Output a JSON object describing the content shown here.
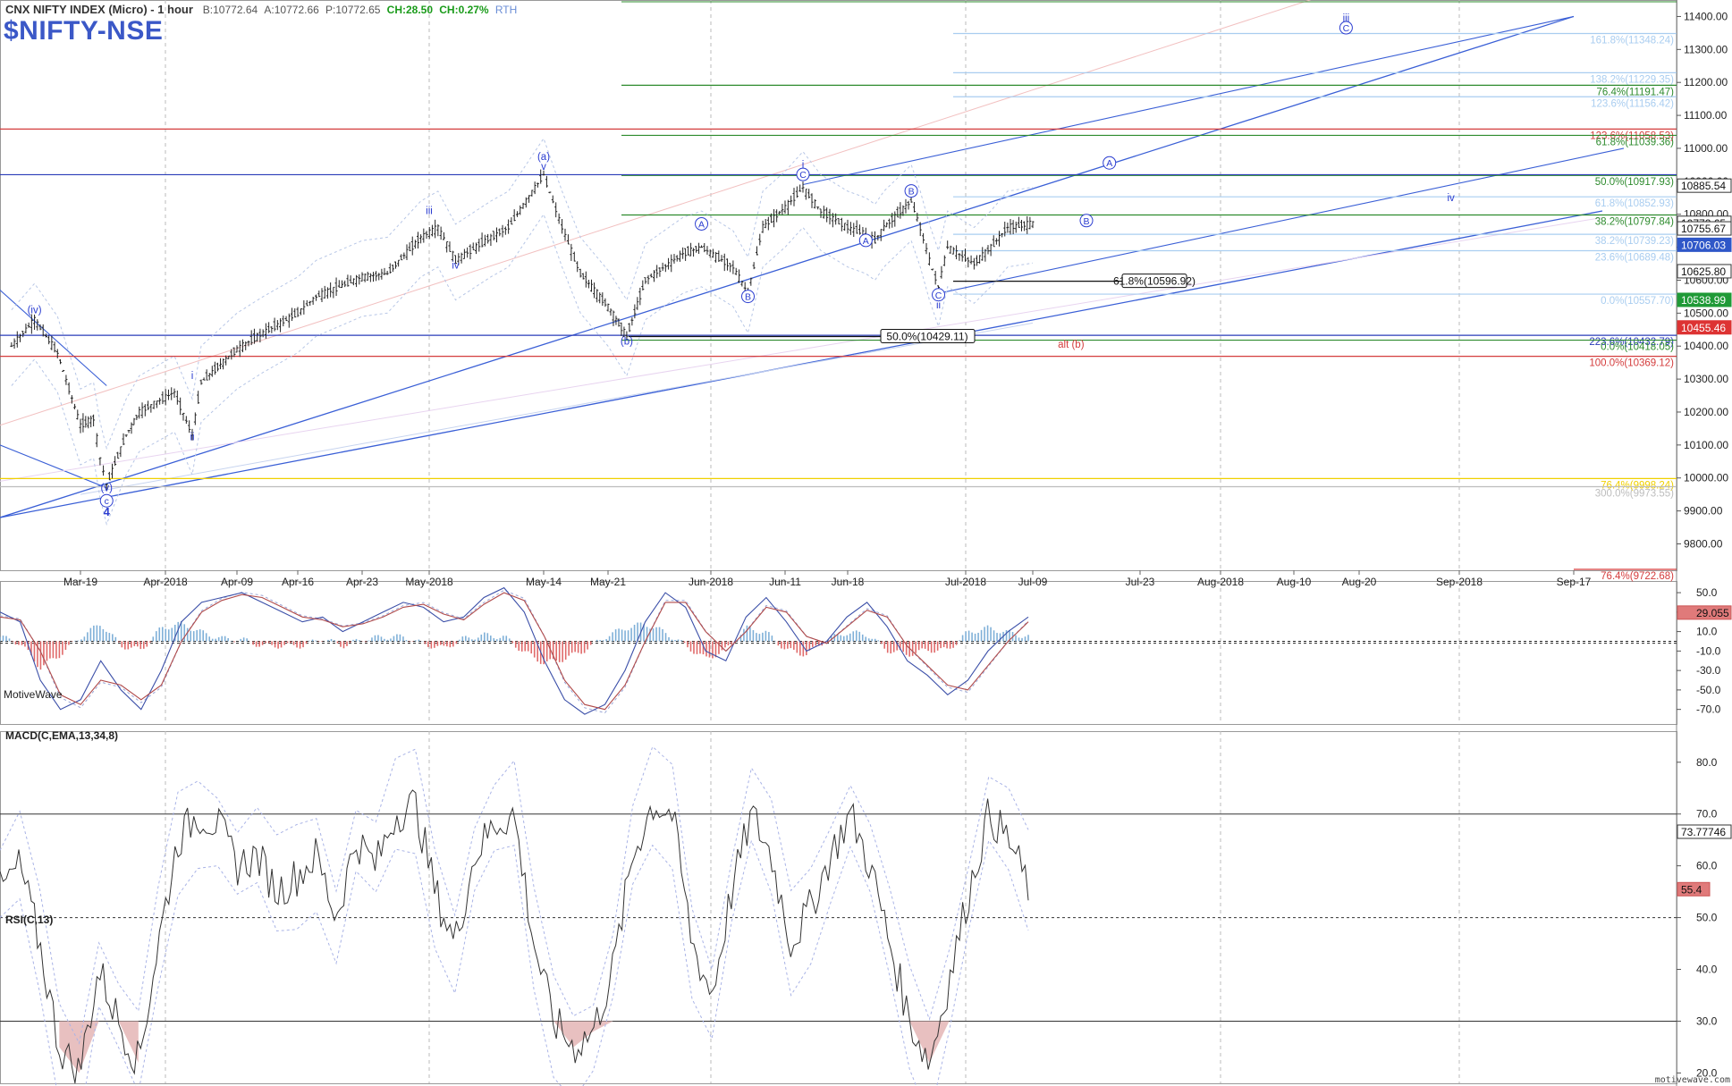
{
  "header": {
    "title": "CNX NIFTY INDEX (Micro) - 1 hour",
    "bid": "B:10772.64",
    "ask": "A:10772.66",
    "price": "P:10772.65",
    "change": "CH:28.50",
    "change_pct": "CH:0.27%",
    "session": "RTH"
  },
  "symbol": "$NIFTY-NSE",
  "watermark": "MotiveWave",
  "footer": "motivewave.com",
  "colors": {
    "green_fib": "#2e8b2e",
    "red_fib": "#d43c3c",
    "blue_line": "#3a5fd6",
    "light_blue_fib": "#a9cdf0",
    "yellow": "#f0d000",
    "grey": "#bdbdbd",
    "dark_blue_line": "#2a3cb8",
    "macd_pos": "#7fb0d8",
    "macd_neg": "#e06a6a"
  },
  "chart_data": [
    {
      "type": "candlestick",
      "title": "CNX NIFTY INDEX (Micro) - 1 hour",
      "x_labels": [
        "Mar-19",
        "Apr-2018",
        "Apr-09",
        "Apr-16",
        "Apr-23",
        "May-2018",
        "May-14",
        "May-21",
        "Jun-2018",
        "Jun-11",
        "Jun-18",
        "Jul-2018",
        "Jul-09",
        "Jul-23",
        "Aug-2018",
        "Aug-10",
        "Aug-20",
        "Sep-2018",
        "Sep-17"
      ],
      "ylim": [
        9720,
        11450
      ],
      "y_ticks": [
        "11400.00",
        "11300.00",
        "11200.00",
        "11100.00",
        "11000.00",
        "10900.00",
        "10800.00",
        "10700.00",
        "10600.00",
        "10500.00",
        "10400.00",
        "10300.00",
        "10200.00",
        "10100.00",
        "10000.00",
        "9900.00",
        "9800.00"
      ],
      "last_price": 10772.65,
      "price_path": [
        {
          "d": "Mar-13",
          "v": 10400
        },
        {
          "d": "Mar-15",
          "v": 10480
        },
        {
          "d": "Mar-17",
          "v": 10380
        },
        {
          "d": "Mar-19",
          "v": 10160
        },
        {
          "d": "Mar-21",
          "v": 10180
        },
        {
          "d": "Mar-22",
          "v": 10060
        },
        {
          "d": "Mar-23",
          "v": 9980
        },
        {
          "d": "Mar-26",
          "v": 10130
        },
        {
          "d": "Mar-28",
          "v": 10200
        },
        {
          "d": "Apr-02",
          "v": 10260
        },
        {
          "d": "Apr-04",
          "v": 10130
        },
        {
          "d": "Apr-05",
          "v": 10290
        },
        {
          "d": "Apr-09",
          "v": 10390
        },
        {
          "d": "Apr-12",
          "v": 10440
        },
        {
          "d": "Apr-16",
          "v": 10500
        },
        {
          "d": "Apr-18",
          "v": 10550
        },
        {
          "d": "Apr-23",
          "v": 10610
        },
        {
          "d": "Apr-26",
          "v": 10620
        },
        {
          "d": "Apr-30",
          "v": 10730
        },
        {
          "d": "May-02",
          "v": 10760
        },
        {
          "d": "May-04",
          "v": 10660
        },
        {
          "d": "May-08",
          "v": 10730
        },
        {
          "d": "May-10",
          "v": 10760
        },
        {
          "d": "May-14",
          "v": 10920
        },
        {
          "d": "May-16",
          "v": 10760
        },
        {
          "d": "May-18",
          "v": 10620
        },
        {
          "d": "May-21",
          "v": 10520
        },
        {
          "d": "May-23",
          "v": 10430
        },
        {
          "d": "May-25",
          "v": 10600
        },
        {
          "d": "May-29",
          "v": 10680
        },
        {
          "d": "May-31",
          "v": 10700
        },
        {
          "d": "Jun-04",
          "v": 10640
        },
        {
          "d": "Jun-06",
          "v": 10560
        },
        {
          "d": "Jun-08",
          "v": 10760
        },
        {
          "d": "Jun-11",
          "v": 10820
        },
        {
          "d": "Jun-13",
          "v": 10880
        },
        {
          "d": "Jun-15",
          "v": 10810
        },
        {
          "d": "Jun-18",
          "v": 10760
        },
        {
          "d": "Jun-20",
          "v": 10740
        },
        {
          "d": "Jun-21",
          "v": 10720
        },
        {
          "d": "Jun-22",
          "v": 10760
        },
        {
          "d": "Jun-25",
          "v": 10840
        },
        {
          "d": "Jun-26",
          "v": 10760
        },
        {
          "d": "Jun-27",
          "v": 10660
        },
        {
          "d": "Jun-28",
          "v": 10580
        },
        {
          "d": "Jun-29",
          "v": 10700
        },
        {
          "d": "Jul-02",
          "v": 10650
        },
        {
          "d": "Jul-04",
          "v": 10700
        },
        {
          "d": "Jul-06",
          "v": 10760
        },
        {
          "d": "Jul-09",
          "v": 10772
        }
      ],
      "levels": [
        {
          "label": "161.8%(11348.24)",
          "value": 11348.24,
          "color": "light_blue"
        },
        {
          "label": "138.2%(11229.35)",
          "value": 11229.35,
          "color": "light_blue"
        },
        {
          "label": "76.4%(11191.47)",
          "value": 11191.47,
          "color": "green"
        },
        {
          "label": "123.6%(11156.42)",
          "value": 11156.42,
          "color": "light_blue"
        },
        {
          "label": "123.6%(11058.53)",
          "value": 11058.53,
          "color": "red"
        },
        {
          "label": "61.8%(11039.36)",
          "value": 11039.36,
          "color": "green"
        },
        {
          "label": "50.0%(10917.93)",
          "value": 10917.93,
          "color": "green"
        },
        {
          "label": "61.8%(10852.93)",
          "value": 10852.93,
          "color": "light_blue"
        },
        {
          "label": "38.2%(10797.84)",
          "value": 10797.84,
          "color": "green"
        },
        {
          "label": "38.2%(10739.23)",
          "value": 10739.23,
          "color": "light_blue"
        },
        {
          "label": "23.6%(10689.48)",
          "value": 10689.48,
          "color": "light_blue"
        },
        {
          "label": "0.0%(10557.70)",
          "value": 10557.7,
          "color": "light_blue"
        },
        {
          "label": "223.6%(10432.79)",
          "value": 10432.79,
          "color": "dark_blue"
        },
        {
          "label": "0.0%(10418.05)",
          "value": 10418.05,
          "color": "green"
        },
        {
          "label": "100.0%(10369.12)",
          "value": 10369.12,
          "color": "red"
        },
        {
          "label": "76.4%(9998.24)",
          "value": 9998.24,
          "color": "yellow"
        },
        {
          "label": "300.0%(9973.55)",
          "value": 9973.55,
          "color": "grey"
        },
        {
          "label": "76.4%(9722.68)",
          "value": 9722.68,
          "color": "red"
        }
      ],
      "boxed_levels": [
        {
          "label": "61.8%(10596.92)",
          "value": 10596.92
        },
        {
          "label": "50.0%(10429.11)",
          "value": 10429.11
        }
      ],
      "axis_tags": [
        {
          "label": "10885.54",
          "value": 10885.54,
          "style": "white"
        },
        {
          "label": "10772.65",
          "value": 10772.65,
          "style": "white"
        },
        {
          "label": "10755.67",
          "value": 10755.67,
          "style": "white"
        },
        {
          "label": "10706.03",
          "value": 10706.03,
          "style": "blue"
        },
        {
          "label": "10625.80",
          "value": 10625.8,
          "style": "white"
        },
        {
          "label": "10538.99",
          "value": 10538.99,
          "style": "green"
        },
        {
          "label": "10455.46",
          "value": 10455.46,
          "style": "red"
        }
      ],
      "wave_labels": [
        {
          "text": "(iv)",
          "d": "Mar-15",
          "v": 10500,
          "circle": false
        },
        {
          "text": "(v)",
          "d": "Mar-23",
          "v": 9960,
          "circle": false
        },
        {
          "text": "c",
          "d": "Mar-23",
          "v": 9920,
          "circle": true
        },
        {
          "text": "4",
          "d": "Mar-23",
          "v": 9885,
          "circle": false,
          "bold": true
        },
        {
          "text": "i",
          "d": "Apr-04",
          "v": 10300,
          "circle": false
        },
        {
          "text": "ii",
          "d": "Apr-04",
          "v": 10115,
          "circle": false
        },
        {
          "text": "iii",
          "d": "May-01",
          "v": 10800,
          "circle": false
        },
        {
          "text": "iv",
          "d": "May-04",
          "v": 10635,
          "circle": false
        },
        {
          "text": "(a)",
          "d": "May-14",
          "v": 10965,
          "circle": false
        },
        {
          "text": "v",
          "d": "May-14",
          "v": 10935,
          "circle": false
        },
        {
          "text": "(b)",
          "d": "May-23",
          "v": 10405,
          "circle": false
        },
        {
          "text": "A",
          "d": "May-31",
          "v": 10760,
          "circle": true
        },
        {
          "text": "B",
          "d": "Jun-06",
          "v": 10540,
          "circle": true
        },
        {
          "text": "i",
          "d": "Jun-13",
          "v": 10940,
          "circle": false
        },
        {
          "text": "C",
          "d": "Jun-13",
          "v": 10910,
          "circle": true
        },
        {
          "text": "A",
          "d": "Jun-20",
          "v": 10710,
          "circle": true
        },
        {
          "text": "B",
          "d": "Jun-25",
          "v": 10860,
          "circle": true
        },
        {
          "text": "C",
          "d": "Jun-28",
          "v": 10545,
          "circle": true
        },
        {
          "text": "ii",
          "d": "Jun-28",
          "v": 10515,
          "circle": false
        },
        {
          "text": "B",
          "d": "Jul-16",
          "v": 10770,
          "circle": true
        },
        {
          "text": "A",
          "d": "Jul-19",
          "v": 10945,
          "circle": true
        },
        {
          "text": "iii",
          "d": "Aug-18",
          "v": 11385,
          "circle": false
        },
        {
          "text": "C",
          "d": "Aug-18",
          "v": 11355,
          "circle": true
        },
        {
          "text": "iv",
          "d": "Aug-31",
          "v": 10840,
          "circle": false
        },
        {
          "text": "alt (b)",
          "d": "Jul-14",
          "v": 10395,
          "circle": false,
          "color": "red"
        }
      ]
    },
    {
      "type": "line",
      "title": "MACD(C,EMA,13,34,8)",
      "ylim": [
        -85,
        62
      ],
      "y_ticks": [
        "50.0",
        "30.0",
        "10.0",
        "-10.0",
        "-30.0",
        "-50.0",
        "-70.0"
      ],
      "last_value": "29.055",
      "series": [
        {
          "name": "MACD",
          "values": [
            30,
            20,
            -40,
            -70,
            -60,
            -20,
            -50,
            -70,
            -30,
            20,
            40,
            45,
            50,
            40,
            30,
            20,
            25,
            10,
            20,
            30,
            40,
            35,
            20,
            25,
            45,
            55,
            30,
            -20,
            -60,
            -75,
            -65,
            -30,
            20,
            50,
            35,
            -10,
            -20,
            25,
            45,
            20,
            -10,
            0,
            25,
            40,
            15,
            -20,
            -35,
            -55,
            -40,
            -10,
            10,
            25
          ]
        },
        {
          "name": "Signal",
          "values": [
            25,
            22,
            -10,
            -55,
            -65,
            -40,
            -45,
            -60,
            -45,
            0,
            30,
            42,
            48,
            45,
            35,
            25,
            22,
            15,
            18,
            25,
            35,
            38,
            28,
            22,
            38,
            50,
            42,
            5,
            -40,
            -65,
            -70,
            -45,
            0,
            40,
            40,
            10,
            -10,
            10,
            35,
            30,
            5,
            -2,
            15,
            32,
            25,
            -5,
            -25,
            -45,
            -50,
            -25,
            0,
            20
          ]
        }
      ]
    },
    {
      "type": "line",
      "title": "RSI(C,13)",
      "ylim": [
        18,
        86
      ],
      "y_ticks": [
        "80.0",
        "70.0",
        "60.0",
        "50.0",
        "40.0",
        "30.0",
        "20.0"
      ],
      "reference_lines": [
        70,
        50,
        30
      ],
      "last_value": "55.4",
      "tag_value": "73.77746",
      "series": [
        {
          "name": "RSI",
          "values": [
            55,
            60,
            45,
            25,
            20,
            40,
            30,
            22,
            45,
            65,
            70,
            68,
            60,
            62,
            55,
            58,
            62,
            50,
            65,
            60,
            70,
            72,
            55,
            45,
            62,
            68,
            70,
            45,
            30,
            25,
            28,
            40,
            62,
            72,
            70,
            45,
            35,
            55,
            70,
            62,
            45,
            52,
            62,
            70,
            60,
            45,
            30,
            22,
            38,
            55,
            70,
            65,
            56
          ]
        }
      ]
    }
  ]
}
